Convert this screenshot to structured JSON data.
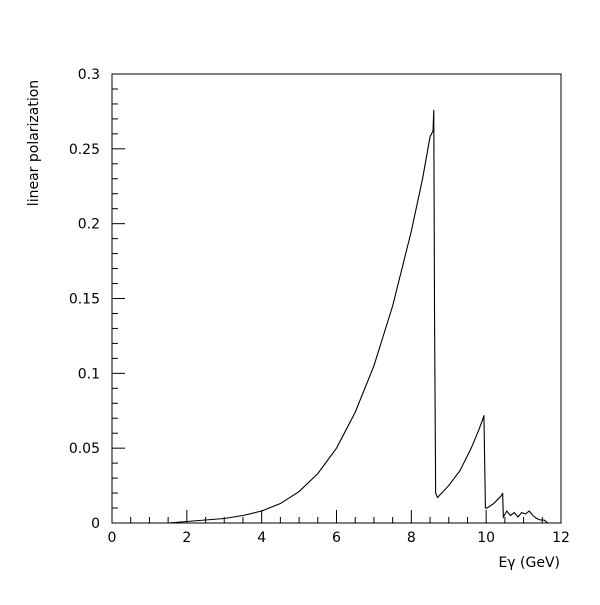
{
  "chart_data": {
    "type": "line",
    "title": "",
    "xlabel": "Eγ (GeV)",
    "ylabel": "linear polarization",
    "xlim": [
      0,
      12
    ],
    "ylim": [
      0,
      0.3
    ],
    "grid": false,
    "x_ticks": [
      0,
      2,
      4,
      6,
      8,
      10,
      12
    ],
    "x_tick_labels": [
      "0",
      "2",
      "4",
      "6",
      "8",
      "10",
      "12"
    ],
    "y_ticks": [
      0,
      0.05,
      0.1,
      0.15,
      0.2,
      0.25,
      0.3
    ],
    "y_tick_labels": [
      "0",
      "0.05",
      "0.1",
      "0.15",
      "0.2",
      "0.25",
      "0.3"
    ],
    "series": [
      {
        "color": "#000000",
        "x": [
          1.0,
          1.5,
          2.0,
          2.5,
          3.0,
          3.5,
          4.0,
          4.5,
          5.0,
          5.5,
          6.0,
          6.5,
          7.0,
          7.5,
          8.0,
          8.3,
          8.5,
          8.58,
          8.6,
          8.62,
          8.65,
          8.7,
          9.0,
          9.3,
          9.6,
          9.8,
          9.92,
          9.94,
          9.98,
          10.02,
          10.2,
          10.4,
          10.44,
          10.46,
          10.55,
          10.65,
          10.75,
          10.85,
          10.95,
          11.05,
          11.15,
          11.25,
          11.35,
          11.45,
          11.55,
          11.65
        ],
        "y": [
          0.0,
          0.0,
          0.001,
          0.002,
          0.003,
          0.005,
          0.008,
          0.013,
          0.021,
          0.033,
          0.05,
          0.074,
          0.105,
          0.145,
          0.195,
          0.23,
          0.258,
          0.262,
          0.276,
          0.14,
          0.02,
          0.017,
          0.025,
          0.035,
          0.05,
          0.062,
          0.07,
          0.072,
          0.01,
          0.01,
          0.013,
          0.018,
          0.02,
          0.004,
          0.008,
          0.005,
          0.007,
          0.004,
          0.007,
          0.006,
          0.008,
          0.005,
          0.003,
          0.002,
          0.002,
          0.0
        ]
      }
    ]
  }
}
